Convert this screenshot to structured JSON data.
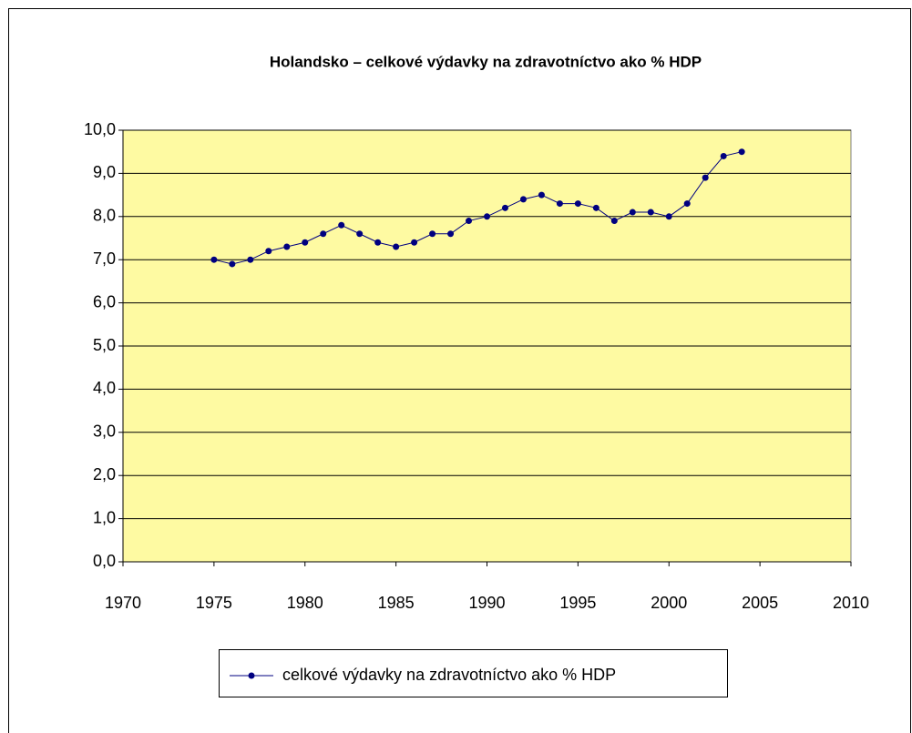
{
  "chart_data": {
    "type": "line",
    "title": "Holandsko – celkové výdavky na zdravotníctvo ako % HDP",
    "x": [
      1975,
      1976,
      1977,
      1978,
      1979,
      1980,
      1981,
      1982,
      1983,
      1984,
      1985,
      1986,
      1987,
      1988,
      1989,
      1990,
      1991,
      1992,
      1993,
      1994,
      1995,
      1996,
      1997,
      1998,
      1999,
      2000,
      2001,
      2002,
      2003,
      2004
    ],
    "series": [
      {
        "name": "celkové výdavky na zdravotníctvo ako % HDP",
        "color": "#000080",
        "values": [
          7.0,
          6.9,
          7.0,
          7.2,
          7.3,
          7.4,
          7.6,
          7.8,
          7.6,
          7.4,
          7.3,
          7.4,
          7.6,
          7.6,
          7.9,
          8.0,
          8.2,
          8.4,
          8.5,
          8.3,
          8.3,
          8.2,
          7.9,
          8.1,
          8.1,
          8.0,
          8.3,
          8.9,
          9.4,
          9.5
        ]
      }
    ],
    "xlim": [
      1970,
      2010
    ],
    "xticks": [
      1970,
      1975,
      1980,
      1985,
      1990,
      1995,
      2000,
      2005,
      2010
    ],
    "ylim": [
      0,
      10
    ],
    "yticks": [
      {
        "value": 0,
        "label": "0,0"
      },
      {
        "value": 1,
        "label": "1,0"
      },
      {
        "value": 2,
        "label": "2,0"
      },
      {
        "value": 3,
        "label": "3,0"
      },
      {
        "value": 4,
        "label": "4,0"
      },
      {
        "value": 5,
        "label": "5,0"
      },
      {
        "value": 6,
        "label": "6,0"
      },
      {
        "value": 7,
        "label": "7,0"
      },
      {
        "value": 8,
        "label": "8,0"
      },
      {
        "value": 9,
        "label": "9,0"
      },
      {
        "value": 10,
        "label": "10,0"
      }
    ],
    "grid": true,
    "legend": "bottom"
  }
}
